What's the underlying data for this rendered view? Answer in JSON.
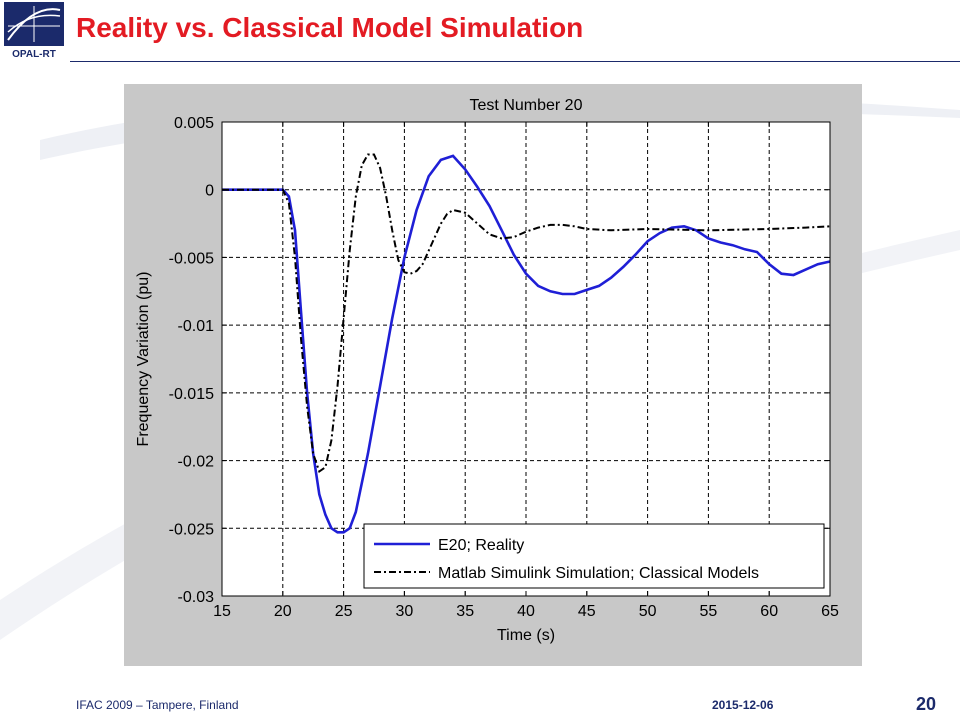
{
  "slide": {
    "title": "Reality vs. Classical Model Simulation",
    "logo_text": "OPAL-RT",
    "footer_left": "IFAC 2009 – Tampere, Finland",
    "footer_date": "2015-12-06",
    "page_number": "20"
  },
  "colors": {
    "title": "#e31b23",
    "navy": "#1b2a6b",
    "reality": "#1f1fd6",
    "simulation": "#000000",
    "figure_bg": "#c8c8c8"
  },
  "chart_data": {
    "type": "line",
    "title": "Test Number 20",
    "xlabel": "Time (s)",
    "ylabel": "Frequency Variation (pu)",
    "xlim": [
      15,
      65
    ],
    "ylim": [
      -0.03,
      0.005
    ],
    "xticks": [
      "15",
      "20",
      "25",
      "30",
      "35",
      "40",
      "45",
      "50",
      "55",
      "60",
      "65"
    ],
    "yticks": [
      "0.005",
      "0",
      "-0.005",
      "-0.01",
      "-0.015",
      "-0.02",
      "-0.025",
      "-0.03"
    ],
    "grid": true,
    "legend_position": "bottom-right",
    "series": [
      {
        "name": "E20; Reality",
        "color": "#1f1fd6",
        "style": "solid",
        "x": [
          15,
          20,
          20.5,
          21,
          21.5,
          22,
          22.5,
          23,
          23.5,
          24,
          24.5,
          25,
          25.5,
          26,
          27,
          28,
          29,
          30,
          31,
          32,
          33,
          34,
          35,
          36,
          37,
          38,
          39,
          40,
          41,
          42,
          43,
          44,
          45,
          46,
          47,
          48,
          49,
          50,
          51,
          52,
          53,
          54,
          55,
          56,
          57,
          58,
          59,
          60,
          61,
          62,
          63,
          64,
          65
        ],
        "y": [
          0,
          0,
          -0.0005,
          -0.003,
          -0.009,
          -0.015,
          -0.0195,
          -0.0225,
          -0.024,
          -0.025,
          -0.0253,
          -0.0253,
          -0.025,
          -0.0238,
          -0.0195,
          -0.0145,
          -0.0095,
          -0.005,
          -0.0015,
          0.001,
          0.0022,
          0.0025,
          0.0015,
          0.0002,
          -0.0012,
          -0.003,
          -0.0048,
          -0.0062,
          -0.0071,
          -0.0075,
          -0.0077,
          -0.0077,
          -0.0074,
          -0.0071,
          -0.0065,
          -0.0057,
          -0.0048,
          -0.0038,
          -0.0032,
          -0.0028,
          -0.0027,
          -0.003,
          -0.0036,
          -0.0039,
          -0.0041,
          -0.0044,
          -0.0046,
          -0.0055,
          -0.0062,
          -0.0063,
          -0.0059,
          -0.0055,
          -0.0053
        ]
      },
      {
        "name": "Matlab Simulink Simulation; Classical Models",
        "color": "#000000",
        "style": "dashdot",
        "x": [
          15,
          20,
          20.5,
          21,
          21.5,
          22,
          22.5,
          23,
          23.5,
          24,
          24.5,
          25,
          25.5,
          26,
          26.5,
          27,
          27.5,
          28,
          28.5,
          29,
          29.5,
          30,
          30.5,
          31,
          31.5,
          32,
          32.5,
          33,
          33.5,
          34,
          35,
          36,
          37,
          38,
          39,
          40,
          41,
          42,
          43,
          44,
          45,
          47,
          50,
          55,
          60,
          63,
          65
        ],
        "y": [
          0,
          0,
          -0.001,
          -0.005,
          -0.011,
          -0.016,
          -0.0195,
          -0.0208,
          -0.0205,
          -0.0185,
          -0.0145,
          -0.0095,
          -0.0045,
          -0.0005,
          0.0018,
          0.0026,
          0.0026,
          0.0016,
          -0.0005,
          -0.003,
          -0.0052,
          -0.0061,
          -0.0062,
          -0.006,
          -0.0055,
          -0.0045,
          -0.0035,
          -0.0025,
          -0.0018,
          -0.0015,
          -0.0017,
          -0.0025,
          -0.0033,
          -0.0036,
          -0.0035,
          -0.0031,
          -0.0028,
          -0.0026,
          -0.0026,
          -0.0027,
          -0.0029,
          -0.003,
          -0.0029,
          -0.003,
          -0.0029,
          -0.0028,
          -0.0027
        ]
      }
    ]
  }
}
